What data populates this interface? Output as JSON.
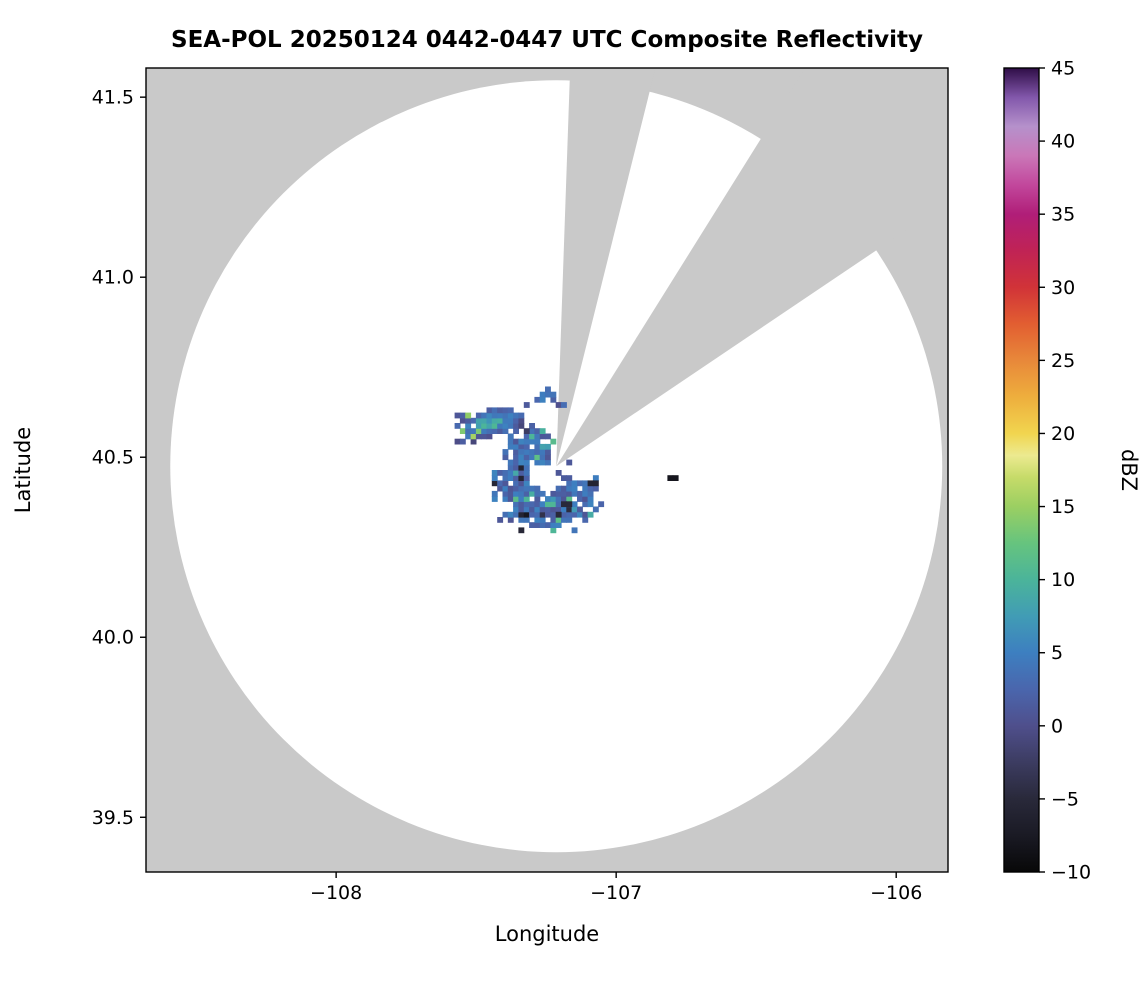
{
  "chart_data": {
    "type": "heatmap",
    "subtype": "radar_composite_reflectivity_ppi",
    "title": "SEA-POL 20250124 0442-0447 UTC Composite Reflectivity",
    "xlabel": "Longitude",
    "ylabel": "Latitude",
    "xlim": [
      -108.679,
      -105.815
    ],
    "ylim": [
      39.348,
      41.581
    ],
    "xticks": {
      "values": [
        -108,
        -107,
        -106
      ],
      "labels": [
        "−108",
        "−107",
        "−106"
      ]
    },
    "yticks": {
      "values": [
        39.5,
        40.0,
        40.5,
        41.0,
        41.5
      ],
      "labels": [
        "39.5",
        "40.0",
        "40.5",
        "41.0",
        "41.5"
      ]
    },
    "grid": false,
    "background_color": "#c9c9c9",
    "scan_area_color": "#ffffff",
    "frame_color": "#000000",
    "radar": {
      "center_lon": -107.214,
      "center_lat": 40.475,
      "range_deg_lat": 1.072,
      "blocked_sectors_az_deg": [
        [
          2,
          14
        ],
        [
          32,
          56
        ]
      ]
    },
    "colorbar": {
      "label": "dBZ",
      "min": -10,
      "max": 45,
      "tick_values": [
        45,
        40,
        35,
        30,
        25,
        20,
        15,
        10,
        5,
        0,
        -5,
        -10
      ],
      "tick_labels": [
        "45",
        "40",
        "35",
        "30",
        "25",
        "20",
        "15",
        "10",
        "5",
        "0",
        "−5",
        "−10"
      ],
      "colormap_stops": [
        [
          -10,
          "#080808"
        ],
        [
          -7.5,
          "#1a1a24"
        ],
        [
          -5,
          "#29293a"
        ],
        [
          -2.5,
          "#3c3c61"
        ],
        [
          0,
          "#4f4f8c"
        ],
        [
          2.5,
          "#4a66ad"
        ],
        [
          5,
          "#3d7fc0"
        ],
        [
          7.5,
          "#419cb5"
        ],
        [
          10,
          "#4bb49a"
        ],
        [
          12.5,
          "#66c47e"
        ],
        [
          15,
          "#9bcf62"
        ],
        [
          17,
          "#c6db69"
        ],
        [
          18.5,
          "#ecea90"
        ],
        [
          20,
          "#f1d54f"
        ],
        [
          22.5,
          "#eeae3d"
        ],
        [
          25,
          "#e8883a"
        ],
        [
          27.5,
          "#e25e31"
        ],
        [
          30,
          "#d13338"
        ],
        [
          32.5,
          "#c02355"
        ],
        [
          35,
          "#b01e78"
        ],
        [
          37,
          "#c2479c"
        ],
        [
          39,
          "#ca77b8"
        ],
        [
          41,
          "#b591cb"
        ],
        [
          43,
          "#8257ab"
        ],
        [
          45,
          "#2f0e47"
        ]
      ]
    },
    "echoes": {
      "cell_deg": [
        0.019,
        0.0145
      ],
      "blobs": [
        {
          "type": "ring",
          "cx": -107.254,
          "cy": 40.438,
          "r_out": 0.133,
          "r_in": 0.04,
          "gap_az": [
            12,
            84
          ],
          "dbz_base": 0.5,
          "dbz_spread": 5
        },
        {
          "type": "ellipse",
          "cx": -107.452,
          "cy": 40.595,
          "a": 0.105,
          "b": 0.042,
          "rot": -15,
          "dbz_core": 11,
          "dbz_edge": 0
        },
        {
          "type": "ellipse",
          "cx": -107.243,
          "cy": 40.672,
          "a": 0.036,
          "b": 0.02,
          "rot": -10,
          "dbz_core": 7,
          "dbz_edge": 1
        },
        {
          "type": "ellipse",
          "cx": -107.196,
          "cy": 40.649,
          "a": 0.02,
          "b": 0.013,
          "rot": 0,
          "dbz_core": 4,
          "dbz_edge": 0
        }
      ],
      "points": [
        {
          "lon": -106.8,
          "lat": 40.443,
          "dbz": -8,
          "cells": 2
        },
        {
          "lon": -107.1,
          "lat": 40.427,
          "dbz": -6,
          "cells": 2
        },
        {
          "lon": -107.345,
          "lat": 40.515,
          "dbz": 4,
          "cells": 1
        },
        {
          "lon": -107.19,
          "lat": 40.375,
          "dbz": -5,
          "cells": 2
        },
        {
          "lon": -107.214,
          "lat": 40.347,
          "dbz": -5,
          "cells": 1
        }
      ]
    }
  }
}
